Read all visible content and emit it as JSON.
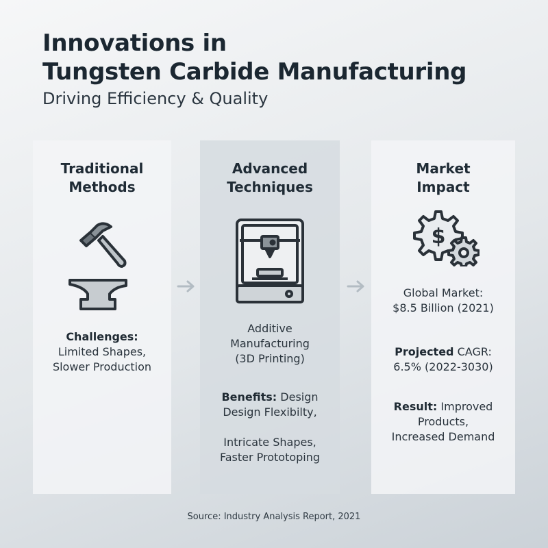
{
  "header": {
    "title_line1": "Innovations in",
    "title_line2": "Tungsten Carbide Manufacturing",
    "subtitle": "Driving Efficiency & Quality"
  },
  "panels": [
    {
      "title_line1": "Traditional",
      "title_line2": "Methods",
      "icons": [
        "hammer-icon",
        "anvil-icon"
      ],
      "challenges_label": "Challenges:",
      "challenges_line1": "Limited Shapes,",
      "challenges_line2": "Slower Production"
    },
    {
      "title_line1": "Advanced",
      "title_line2": "Techniques",
      "icons": [
        "3d-printer-icon"
      ],
      "technique_line1": "Additive",
      "technique_line2": "Manufacturing",
      "technique_line3": "(3D Printing)",
      "benefits_label": "Benefits:",
      "benefits_first": " Design",
      "benefits_line2": "Design Flexibilty,",
      "benefits_line3": "Intricate Shapes,",
      "benefits_line4": "Faster Prototoping"
    },
    {
      "title_line1": "Market",
      "title_line2": "Impact",
      "icons": [
        "dollar-gear-icon"
      ],
      "market_line1": "Global Market:",
      "market_line2": "$8.5 Billion (2021)",
      "cagr_bold": "Projected",
      "cagr_rest": " CAGR:",
      "cagr_line2": "6.5% (2022-3030)",
      "result_label": "Result:",
      "result_rest": " Improved",
      "result_line2": "Products,",
      "result_line3": "Increased Demand"
    }
  ],
  "footer": {
    "source": "Source: Industry Analysis Report, 2021"
  },
  "colors": {
    "text_dark": "#1b2731",
    "icon_stroke": "#2a3138",
    "arrow": "#b3bcc3",
    "panel_light": "#f3f5f7",
    "panel_mid": "#d6dce1"
  }
}
